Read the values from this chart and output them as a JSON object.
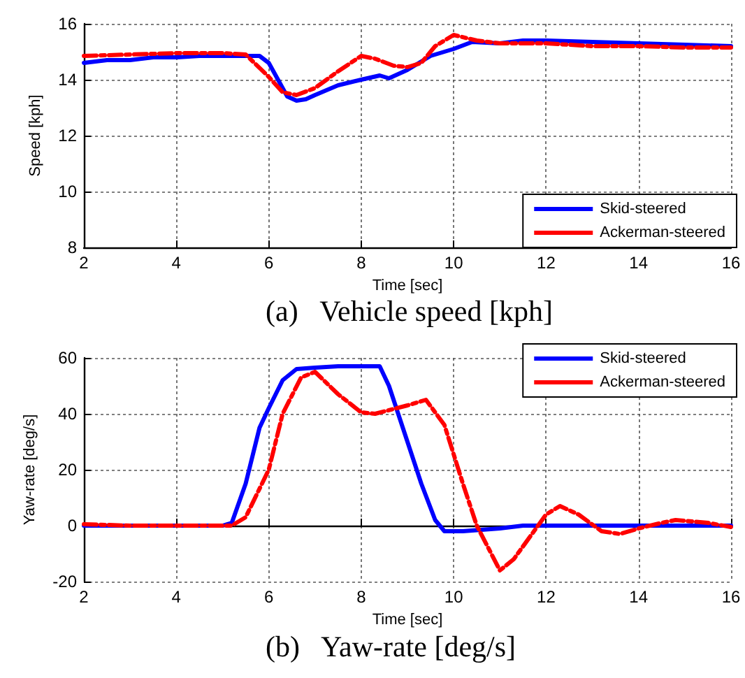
{
  "chart_data": [
    {
      "type": "line",
      "xlabel": "Time [sec]",
      "ylabel": "Speed [kph]",
      "annotations": [
        "(a)   Vehicle speed [kph]"
      ],
      "xlim": [
        2,
        16
      ],
      "xticks": [
        2,
        4,
        6,
        8,
        10,
        12,
        14,
        16
      ],
      "ylim": [
        8,
        16
      ],
      "yticks": [
        8,
        10,
        12,
        14,
        16
      ],
      "grid": true,
      "legend": "bottom right",
      "marker": "none",
      "series": [
        {
          "name": "Skid-steered",
          "color": "#0000ff",
          "line_style": "solid",
          "x": [
            2,
            2.5,
            3,
            3.5,
            4,
            4.5,
            5,
            5.5,
            5.8,
            6,
            6.2,
            6.4,
            6.6,
            6.8,
            7,
            7.5,
            8,
            8.4,
            8.6,
            9,
            9.5,
            10,
            10.4,
            11,
            11.5,
            12,
            13,
            14,
            15,
            16
          ],
          "values": [
            14.6,
            14.7,
            14.7,
            14.8,
            14.8,
            14.85,
            14.85,
            14.85,
            14.85,
            14.6,
            14.0,
            13.4,
            13.25,
            13.3,
            13.45,
            13.8,
            14.0,
            14.15,
            14.05,
            14.35,
            14.85,
            15.1,
            15.35,
            15.3,
            15.4,
            15.4,
            15.35,
            15.3,
            15.25,
            15.2
          ]
        },
        {
          "name": "Ackerman-steered",
          "color": "#ff0000",
          "line_style": "dashed",
          "x": [
            2,
            3,
            4,
            5,
            5.5,
            6,
            6.3,
            6.6,
            7,
            7.5,
            8,
            8.3,
            8.7,
            9,
            9.3,
            9.6,
            10,
            10.5,
            11,
            12,
            13,
            14,
            15,
            16
          ],
          "values": [
            14.85,
            14.9,
            14.95,
            14.95,
            14.9,
            14.1,
            13.55,
            13.45,
            13.7,
            14.3,
            14.85,
            14.75,
            14.5,
            14.45,
            14.6,
            15.2,
            15.6,
            15.4,
            15.3,
            15.3,
            15.2,
            15.2,
            15.15,
            15.15
          ]
        }
      ]
    },
    {
      "type": "line",
      "xlabel": "Time [sec]",
      "ylabel": "Yaw-rate [deg/s]",
      "annotations": [
        "(b)   Yaw-rate [deg/s]"
      ],
      "xlim": [
        2,
        16
      ],
      "xticks": [
        2,
        4,
        6,
        8,
        10,
        12,
        14,
        16
      ],
      "ylim": [
        -20,
        60
      ],
      "yticks": [
        -20,
        0,
        20,
        40,
        60
      ],
      "grid": true,
      "legend": "top right",
      "marker": "none",
      "series": [
        {
          "name": "Skid-steered",
          "color": "#0000ff",
          "line_style": "solid",
          "x": [
            2,
            5,
            5.2,
            5.5,
            5.8,
            6,
            6.3,
            6.6,
            7,
            7.5,
            8,
            8.4,
            8.6,
            9,
            9.3,
            9.6,
            9.8,
            10.2,
            11,
            11.5,
            16
          ],
          "values": [
            0,
            0,
            1,
            15,
            35,
            42,
            52,
            56,
            56.5,
            57,
            57,
            57,
            50,
            30,
            15,
            2,
            -2,
            -2,
            -1,
            0,
            0
          ]
        },
        {
          "name": "Ackerman-steered",
          "color": "#ff0000",
          "line_style": "dashed",
          "x": [
            2,
            3,
            5.2,
            5.5,
            6,
            6.3,
            6.7,
            7,
            7.5,
            8,
            8.3,
            9,
            9.4,
            9.8,
            10.2,
            10.5,
            11,
            11.3,
            12,
            12.3,
            12.7,
            13.2,
            13.6,
            14,
            14.5,
            14.8,
            15.5,
            16
          ],
          "values": [
            0.5,
            0,
            0,
            3,
            20,
            40,
            53,
            55,
            47,
            40.5,
            40,
            43,
            45,
            36,
            15,
            0,
            -16,
            -12,
            4,
            7,
            4,
            -2,
            -3,
            -1,
            1,
            2,
            1,
            -0.5
          ]
        }
      ]
    }
  ]
}
